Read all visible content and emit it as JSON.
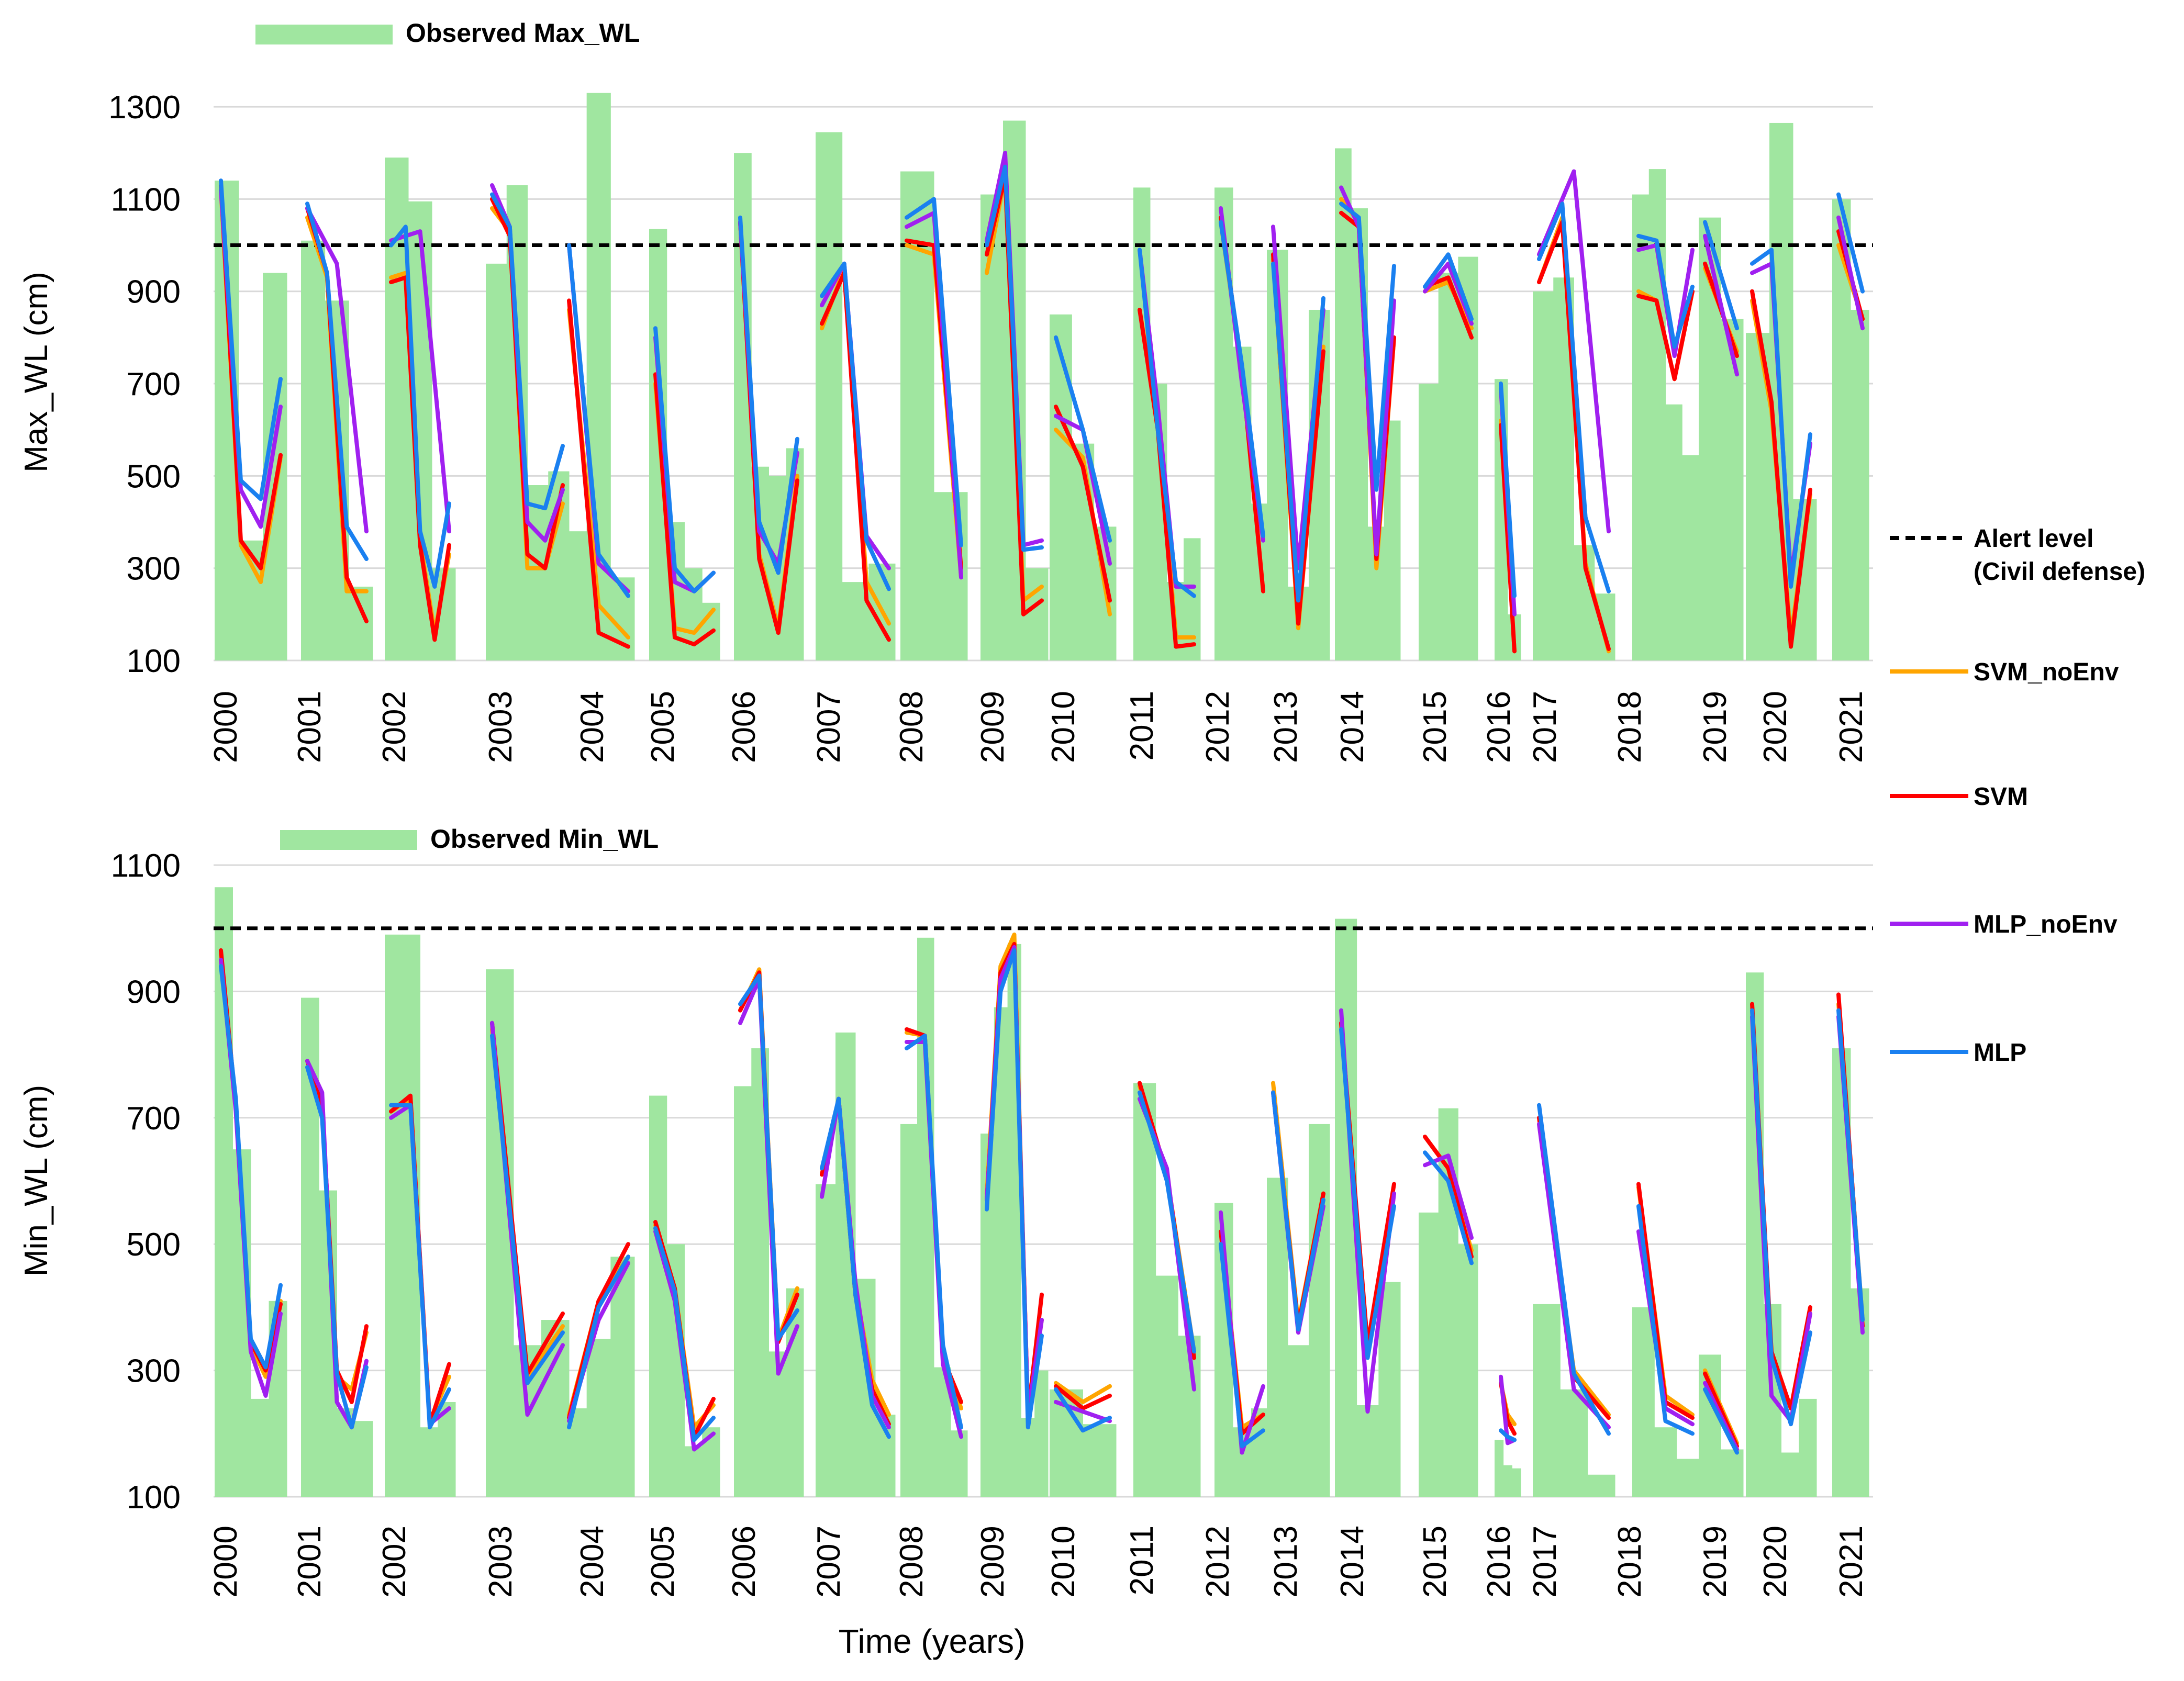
{
  "xlabel": "Time (years)",
  "years": [
    "2000",
    "2001",
    "2002",
    "2003",
    "2004",
    "2005",
    "2006",
    "2007",
    "2008",
    "2009",
    "2010",
    "2011",
    "2012",
    "2013",
    "2014",
    "2015",
    "2016",
    "2017",
    "2018",
    "2019",
    "2020",
    "2021"
  ],
  "legend": {
    "alert": [
      "Alert level",
      "(Civil defense)"
    ],
    "svm_noenv": "SVM_noEnv",
    "svm": "SVM",
    "mlp_noenv": "MLP_noEnv",
    "mlp": "MLP"
  },
  "colors": {
    "bar": "#a0e6a0",
    "svm_noenv": "#ffa500",
    "svm": "#ff0000",
    "mlp_noenv": "#a020f0",
    "mlp": "#1a80f0",
    "alert": "#000000",
    "grid": "#d9d9d9"
  },
  "chart_data": [
    {
      "type": "bar+line",
      "title": "Observed Max_WL",
      "bar_series_name": "Observed Max_WL",
      "ylabel": "Max_WL (cm)",
      "ylim": [
        100,
        1350
      ],
      "yticks": [
        100,
        300,
        500,
        700,
        900,
        1100,
        1300
      ],
      "alert_level": 1000,
      "observed": [
        [
          1140,
          1140,
          360,
          360,
          940,
          940
        ],
        [
          1010,
          1010,
          880,
          880,
          260,
          260
        ],
        [
          1190,
          1190,
          1095,
          1095,
          300,
          300
        ],
        [
          960,
          960,
          1130,
          1130,
          480,
          480,
          510,
          510
        ],
        [
          380,
          380,
          1330,
          1330,
          280,
          280
        ],
        [
          1035,
          1035,
          400,
          400,
          300,
          300,
          225,
          225
        ],
        [
          1200,
          1200,
          520,
          520,
          500,
          500,
          560,
          560
        ],
        [
          1245,
          1245,
          270,
          270,
          310,
          310
        ],
        [
          1160,
          1160,
          465,
          465
        ],
        [
          1110,
          1110,
          1270,
          1270,
          300,
          300
        ],
        [
          850,
          850,
          570,
          570,
          390,
          390
        ],
        [
          1125,
          1125,
          700,
          700,
          270,
          270,
          365,
          365
        ],
        [
          1125,
          1125,
          780,
          780,
          440,
          440
        ],
        [
          990,
          990,
          260,
          260,
          860,
          860
        ],
        [
          1210,
          1210,
          1080,
          1080,
          390,
          390,
          620,
          620
        ],
        [
          700,
          700,
          940,
          940,
          975,
          975
        ],
        [
          710,
          710,
          200,
          200
        ],
        [
          900,
          900,
          930,
          930,
          350,
          350,
          245,
          245
        ],
        [
          1110,
          1110,
          1165,
          1165,
          655,
          655,
          545,
          545
        ],
        [
          1060,
          1060,
          840,
          840
        ],
        [
          810,
          810,
          1265,
          1265,
          450,
          450
        ],
        [
          1100,
          1100,
          860,
          860
        ]
      ],
      "mlp": [
        [
          1140,
          490,
          450,
          710
        ],
        [
          1090,
          940,
          390,
          320
        ],
        [
          1000,
          1040,
          380,
          260,
          440
        ],
        [
          1110,
          1040,
          440,
          430,
          565
        ],
        [
          1000,
          330,
          240
        ],
        [
          820,
          300,
          250,
          290
        ],
        [
          1060,
          400,
          290,
          580
        ],
        [
          890,
          960,
          360,
          255
        ],
        [
          1060,
          1100,
          350
        ],
        [
          1000,
          1170,
          340,
          345
        ],
        [
          800,
          600,
          360
        ],
        [
          990,
          600,
          270,
          240
        ],
        [
          1050,
          740,
          370
        ],
        [
          960,
          230,
          885
        ],
        [
          1090,
          1060,
          470,
          955
        ],
        [
          910,
          980,
          840
        ],
        [
          700,
          240
        ],
        [
          970,
          1090,
          410,
          250
        ],
        [
          1020,
          1010,
          780,
          910
        ],
        [
          1050,
          820
        ],
        [
          960,
          990,
          260,
          590
        ],
        [
          1110,
          900
        ]
      ],
      "mlp_noenv": [
        [
          1120,
          470,
          390,
          650
        ],
        [
          1080,
          960,
          380
        ],
        [
          1010,
          1030,
          380
        ],
        [
          1130,
          1040,
          400,
          360,
          470
        ],
        [
          1000,
          310,
          250
        ],
        [
          800,
          270,
          250,
          290
        ],
        [
          1050,
          380,
          310,
          550
        ],
        [
          870,
          960,
          370,
          300
        ],
        [
          1040,
          1070,
          280
        ],
        [
          1010,
          1200,
          350,
          360
        ],
        [
          630,
          600,
          310
        ],
        [
          990,
          650,
          260,
          260
        ],
        [
          1080,
          700,
          360
        ],
        [
          1040,
          300,
          860
        ],
        [
          1125,
          1040,
          330,
          880
        ],
        [
          900,
          960,
          830
        ],
        [
          690,
          200
        ],
        [
          980,
          1160,
          380
        ],
        [
          990,
          1000,
          760,
          990
        ],
        [
          1020,
          720
        ],
        [
          940,
          960,
          280,
          570
        ],
        [
          1060,
          820
        ]
      ],
      "svm": [
        [
          1130,
          360,
          300,
          545
        ],
        [
          1080,
          940,
          280,
          185
        ],
        [
          920,
          930,
          350,
          145,
          350
        ],
        [
          1100,
          1020,
          330,
          300,
          480
        ],
        [
          880,
          160,
          130
        ],
        [
          720,
          150,
          135,
          165
        ],
        [
          1050,
          320,
          160,
          490
        ],
        [
          830,
          940,
          230,
          145
        ],
        [
          1010,
          1000,
          300
        ],
        [
          980,
          1150,
          200,
          230
        ],
        [
          650,
          520,
          230
        ],
        [
          860,
          600,
          130,
          135
        ],
        [
          1060,
          730,
          250
        ],
        [
          980,
          180,
          770
        ],
        [
          1070,
          1040,
          320,
          800
        ],
        [
          910,
          930,
          800
        ],
        [
          610,
          120
        ],
        [
          920,
          1050,
          300,
          125
        ],
        [
          890,
          880,
          710,
          900
        ],
        [
          960,
          760
        ],
        [
          900,
          660,
          130,
          470
        ],
        [
          1030,
          840
        ]
      ],
      "svm_noenv": [
        [
          1120,
          350,
          270,
          540
        ],
        [
          1060,
          930,
          250,
          250
        ],
        [
          930,
          940,
          360,
          160,
          330
        ],
        [
          1080,
          1030,
          300,
          300,
          440
        ],
        [
          860,
          220,
          150
        ],
        [
          700,
          170,
          160,
          210
        ],
        [
          1050,
          330,
          170,
          500
        ],
        [
          820,
          950,
          270,
          180
        ],
        [
          1000,
          980,
          280
        ],
        [
          940,
          1150,
          230,
          260
        ],
        [
          600,
          540,
          200
        ],
        [
          860,
          620,
          150,
          150
        ],
        [
          1050,
          730,
          250
        ],
        [
          970,
          170,
          780
        ],
        [
          1100,
          1050,
          300,
          800
        ],
        [
          900,
          920,
          820
        ],
        [
          620,
          120
        ],
        [
          920,
          1060,
          310,
          120
        ],
        [
          900,
          880,
          710,
          900
        ],
        [
          950,
          770
        ],
        [
          880,
          640,
          150,
          460
        ],
        [
          1000,
          840
        ]
      ]
    },
    {
      "type": "bar+line",
      "title": "Observed Min_WL",
      "bar_series_name": "Observed Min_WL",
      "ylabel": "Min_WL (cm)",
      "ylim": [
        100,
        1100
      ],
      "yticks": [
        100,
        300,
        500,
        700,
        900,
        1100
      ],
      "alert_level": 1000,
      "observed": [
        [
          1065,
          1065,
          650,
          650,
          255,
          255,
          410,
          410
        ],
        [
          890,
          890,
          585,
          585,
          240,
          240,
          220,
          220
        ],
        [
          990,
          990,
          990,
          990,
          210,
          210,
          250,
          250
        ],
        [
          935,
          935,
          340,
          340,
          380,
          380
        ],
        [
          240,
          240,
          350,
          350,
          480,
          480
        ],
        [
          735,
          735,
          500,
          500,
          180,
          180,
          210,
          210
        ],
        [
          750,
          750,
          810,
          810,
          330,
          330,
          430,
          430
        ],
        [
          595,
          595,
          835,
          835,
          445,
          445,
          230,
          230
        ],
        [
          690,
          690,
          985,
          985,
          305,
          305,
          205,
          205
        ],
        [
          675,
          675,
          875,
          875,
          975,
          975,
          225,
          225,
          300,
          300
        ],
        [
          270,
          270,
          215,
          215
        ],
        [
          755,
          755,
          450,
          450,
          355,
          355
        ],
        [
          565,
          565,
          210,
          210,
          240,
          240
        ],
        [
          605,
          605,
          340,
          340,
          690,
          690
        ],
        [
          1015,
          1015,
          245,
          245,
          440,
          440
        ],
        [
          550,
          550,
          715,
          715,
          500,
          500
        ],
        [
          190,
          190,
          150,
          150,
          145,
          145
        ],
        [
          405,
          405,
          270,
          270,
          135,
          135
        ],
        [
          400,
          400,
          210,
          210,
          160,
          160
        ],
        [
          325,
          325,
          175,
          175
        ],
        [
          930,
          930,
          405,
          405,
          170,
          170,
          255,
          255
        ],
        [
          810,
          810,
          430,
          430
        ]
      ],
      "mlp": [
        [
          940,
          730,
          350,
          305,
          435
        ],
        [
          780,
          700,
          295,
          210,
          305
        ],
        [
          720,
          720,
          210,
          270
        ],
        [
          830,
          280,
          360
        ],
        [
          210,
          400,
          480
        ],
        [
          525,
          425,
          190,
          225
        ],
        [
          880,
          925,
          350,
          395
        ],
        [
          620,
          730,
          420,
          245,
          195
        ],
        [
          810,
          830,
          340,
          210
        ],
        [
          555,
          900,
          965,
          210,
          355
        ],
        [
          270,
          205,
          225
        ],
        [
          740,
          600,
          330
        ],
        [
          500,
          180,
          205
        ],
        [
          740,
          365,
          570
        ],
        [
          840,
          320,
          560
        ],
        [
          645,
          600,
          470
        ],
        [
          205,
          195,
          190
        ],
        [
          720,
          295,
          200
        ],
        [
          560,
          220,
          200
        ],
        [
          270,
          170
        ],
        [
          870,
          320,
          215,
          360
        ],
        [
          870,
          380
        ]
      ],
      "mlp_noenv": [
        [
          950,
          710,
          330,
          260,
          390
        ],
        [
          790,
          740,
          250,
          210,
          315
        ],
        [
          700,
          720,
          215,
          240
        ],
        [
          850,
          230,
          340
        ],
        [
          220,
          380,
          470
        ],
        [
          520,
          410,
          175,
          200
        ],
        [
          850,
          920,
          295,
          370
        ],
        [
          575,
          730,
          440,
          260,
          210
        ],
        [
          820,
          820,
          310,
          195
        ],
        [
          570,
          920,
          970,
          230,
          380
        ],
        [
          250,
          235,
          220
        ],
        [
          730,
          620,
          270
        ],
        [
          550,
          170,
          275
        ],
        [
          740,
          360,
          560
        ],
        [
          870,
          235,
          580
        ],
        [
          625,
          640,
          510
        ],
        [
          290,
          185,
          190
        ],
        [
          690,
          270,
          210
        ],
        [
          520,
          240,
          215
        ],
        [
          280,
          175
        ],
        [
          860,
          260,
          220,
          390
        ],
        [
          860,
          360
        ]
      ],
      "svm": [
        [
          965,
          720,
          345,
          300,
          405
        ],
        [
          790,
          720,
          300,
          250,
          370
        ],
        [
          710,
          735,
          215,
          310
        ],
        [
          850,
          295,
          390
        ],
        [
          225,
          410,
          500
        ],
        [
          535,
          430,
          195,
          255
        ],
        [
          870,
          930,
          345,
          420
        ],
        [
          610,
          730,
          420,
          270,
          215
        ],
        [
          840,
          830,
          320,
          250
        ],
        [
          570,
          930,
          975,
          230,
          420
        ],
        [
          275,
          240,
          260
        ],
        [
          755,
          610,
          320
        ],
        [
          520,
          200,
          230
        ],
        [
          740,
          370,
          580
        ],
        [
          850,
          340,
          595
        ],
        [
          670,
          620,
          480
        ],
        [
          280,
          220,
          200
        ],
        [
          700,
          290,
          225
        ],
        [
          595,
          250,
          225
        ],
        [
          295,
          180
        ],
        [
          880,
          330,
          240,
          400
        ],
        [
          895,
          370
        ]
      ],
      "svm_noenv": [
        [
          960,
          720,
          340,
          290,
          410
        ],
        [
          790,
          720,
          290,
          270,
          360
        ],
        [
          710,
          730,
          220,
          290
        ],
        [
          840,
          290,
          370
        ],
        [
          230,
          410,
          480
        ],
        [
          530,
          430,
          210,
          245
        ],
        [
          870,
          935,
          350,
          430
        ],
        [
          610,
          730,
          430,
          285,
          230
        ],
        [
          835,
          830,
          320,
          240
        ],
        [
          580,
          940,
          990,
          230,
          380
        ],
        [
          280,
          250,
          275
        ],
        [
          750,
          610,
          330
        ],
        [
          520,
          210,
          230
        ],
        [
          755,
          375,
          580
        ],
        [
          850,
          330,
          580
        ],
        [
          670,
          620,
          490
        ],
        [
          280,
          230,
          215
        ],
        [
          690,
          300,
          230
        ],
        [
          590,
          260,
          230
        ],
        [
          300,
          185
        ],
        [
          870,
          320,
          240,
          390
        ],
        [
          880,
          380
        ]
      ]
    }
  ]
}
